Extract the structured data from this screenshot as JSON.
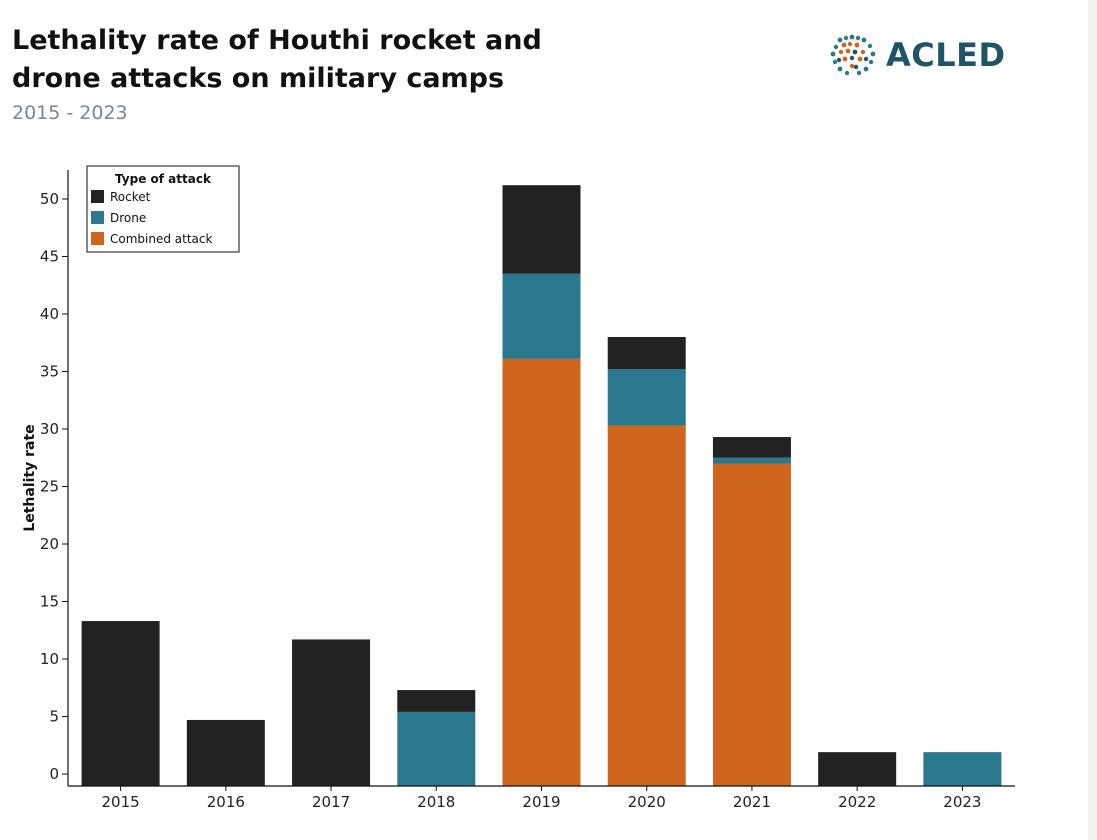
{
  "header": {
    "title_line1": "Lethality rate of Houthi rocket and",
    "title_line2": "drone attacks on military camps",
    "subtitle": "2015 - 2023"
  },
  "logo": {
    "text": "ACLED",
    "icon": "globe-dots-icon"
  },
  "colors": {
    "rocket": "#222222",
    "drone": "#2a788e",
    "combined": "#d0661e",
    "axis": "#111111",
    "logo_text": "#1f5466"
  },
  "chart_data": {
    "type": "bar",
    "stacked": true,
    "title": "Lethality rate of Houthi rocket and drone attacks on military camps",
    "subtitle": "2015 - 2023",
    "xlabel": "",
    "ylabel": "Lethality rate",
    "ylim": [
      0,
      54
    ],
    "yticks": [
      0,
      5,
      10,
      15,
      20,
      25,
      30,
      35,
      40,
      45,
      50
    ],
    "grid": false,
    "categories": [
      "2015",
      "2016",
      "2017",
      "2018",
      "2019",
      "2020",
      "2021",
      "2022",
      "2023"
    ],
    "series": [
      {
        "name": "Combined attack",
        "color": "#d0661e",
        "values": [
          0,
          0,
          0,
          0,
          36.1,
          30.3,
          27.0,
          0,
          0
        ]
      },
      {
        "name": "Drone",
        "color": "#2a788e",
        "values": [
          0,
          0,
          0,
          5.4,
          7.4,
          4.9,
          0.5,
          0,
          1.9
        ]
      },
      {
        "name": "Rocket",
        "color": "#222222",
        "values": [
          13.3,
          4.7,
          11.7,
          1.9,
          7.7,
          2.8,
          1.8,
          1.9,
          0
        ]
      }
    ],
    "legend": {
      "title": "Type of attack",
      "position": "top-left",
      "entries": [
        "Rocket",
        "Drone",
        "Combined attack"
      ]
    }
  }
}
